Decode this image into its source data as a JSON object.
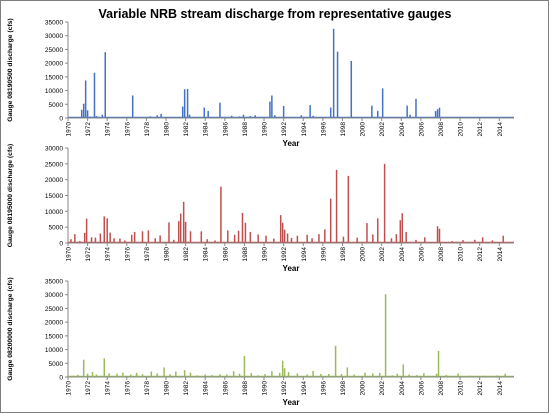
{
  "page": {
    "title": "Variable NRB stream discharge from representative gauges"
  },
  "chart_data": [
    {
      "type": "bar",
      "title": "Variable NRB stream discharge from representative gauges",
      "xlabel": "Year",
      "ylabel": "Gauge 08190500 discharge (cfs)",
      "ylim": [
        0,
        35000
      ],
      "yticks": [
        "0",
        "5000",
        "10000",
        "15000",
        "20000",
        "25000",
        "30000",
        "35000"
      ],
      "xlim": [
        1970,
        2015.5
      ],
      "xticks": [
        "1970",
        "1972",
        "1974",
        "1976",
        "1978",
        "1980",
        "1982",
        "1984",
        "1986",
        "1988",
        "1990",
        "1992",
        "1994",
        "1996",
        "1998",
        "2000",
        "2002",
        "2004",
        "2006",
        "2008",
        "2010",
        "2012",
        "2014"
      ],
      "color": "#4472c4",
      "grid": false,
      "points": [
        [
          1971.4,
          3000
        ],
        [
          1971.6,
          5200
        ],
        [
          1971.8,
          13700
        ],
        [
          1972.0,
          2800
        ],
        [
          1972.3,
          500
        ],
        [
          1972.7,
          16500
        ],
        [
          1972.9,
          700
        ],
        [
          1973.5,
          1200
        ],
        [
          1973.8,
          24000
        ],
        [
          1976.6,
          8200
        ],
        [
          1978.4,
          600
        ],
        [
          1979.1,
          1000
        ],
        [
          1979.5,
          1500
        ],
        [
          1981.7,
          4200
        ],
        [
          1981.9,
          10500
        ],
        [
          1982.2,
          10600
        ],
        [
          1982.4,
          1200
        ],
        [
          1983.9,
          3800
        ],
        [
          1984.3,
          2600
        ],
        [
          1985.5,
          5600
        ],
        [
          1986.7,
          800
        ],
        [
          1987.5,
          600
        ],
        [
          1987.9,
          1200
        ],
        [
          1988.6,
          700
        ],
        [
          1989.1,
          1000
        ],
        [
          1990.6,
          6000
        ],
        [
          1990.8,
          8200
        ],
        [
          1991.1,
          1000
        ],
        [
          1992.0,
          4400
        ],
        [
          1993.8,
          1000
        ],
        [
          1994.7,
          4700
        ],
        [
          1995.0,
          800
        ],
        [
          1996.8,
          3800
        ],
        [
          1997.1,
          32500
        ],
        [
          1997.5,
          24200
        ],
        [
          1998.9,
          20800
        ],
        [
          2001.0,
          4500
        ],
        [
          2001.6,
          2600
        ],
        [
          2002.1,
          10800
        ],
        [
          2004.6,
          4500
        ],
        [
          2004.9,
          1200
        ],
        [
          2005.5,
          7000
        ],
        [
          2007.5,
          2500
        ],
        [
          2007.7,
          3200
        ],
        [
          2007.9,
          3800
        ],
        [
          2009.5,
          400
        ],
        [
          2011.0,
          300
        ],
        [
          2013.0,
          200
        ]
      ]
    },
    {
      "type": "bar",
      "xlabel": "Year",
      "ylabel": "Gauge 08195000 discharge (cfs)",
      "ylim": [
        0,
        30000
      ],
      "yticks": [
        "0",
        "5000",
        "10000",
        "15000",
        "20000",
        "25000",
        "30000"
      ],
      "xlim": [
        1970,
        2015.5
      ],
      "xticks": [
        "1970",
        "1972",
        "1974",
        "1976",
        "1978",
        "1980",
        "1982",
        "1984",
        "1986",
        "1988",
        "1990",
        "1992",
        "1994",
        "1996",
        "1998",
        "2000",
        "2002",
        "2004",
        "2006",
        "2008",
        "2010",
        "2012",
        "2014"
      ],
      "color": "#c0504d",
      "grid": false,
      "points": [
        [
          1970.3,
          1200
        ],
        [
          1970.7,
          2800
        ],
        [
          1971.2,
          600
        ],
        [
          1971.7,
          3200
        ],
        [
          1971.9,
          7700
        ],
        [
          1972.4,
          1800
        ],
        [
          1972.8,
          1700
        ],
        [
          1973.3,
          3000
        ],
        [
          1973.7,
          8400
        ],
        [
          1974.0,
          7800
        ],
        [
          1974.3,
          3300
        ],
        [
          1974.7,
          1500
        ],
        [
          1975.3,
          1400
        ],
        [
          1975.8,
          800
        ],
        [
          1976.5,
          2600
        ],
        [
          1976.8,
          3500
        ],
        [
          1977.6,
          3700
        ],
        [
          1978.2,
          4000
        ],
        [
          1978.9,
          1500
        ],
        [
          1979.4,
          2400
        ],
        [
          1980.3,
          6500
        ],
        [
          1980.8,
          1000
        ],
        [
          1981.3,
          6900
        ],
        [
          1981.5,
          9300
        ],
        [
          1981.8,
          13000
        ],
        [
          1982.0,
          6700
        ],
        [
          1982.5,
          3700
        ],
        [
          1983.6,
          3700
        ],
        [
          1984.2,
          1200
        ],
        [
          1985.0,
          800
        ],
        [
          1985.6,
          17800
        ],
        [
          1986.3,
          4000
        ],
        [
          1987.0,
          2600
        ],
        [
          1987.4,
          3900
        ],
        [
          1987.8,
          9500
        ],
        [
          1988.1,
          6400
        ],
        [
          1988.6,
          3500
        ],
        [
          1989.4,
          2700
        ],
        [
          1990.2,
          2300
        ],
        [
          1991.0,
          1400
        ],
        [
          1991.7,
          8800
        ],
        [
          1991.9,
          6400
        ],
        [
          1992.1,
          4200
        ],
        [
          1992.4,
          3000
        ],
        [
          1992.8,
          1600
        ],
        [
          1993.4,
          2300
        ],
        [
          1994.4,
          2600
        ],
        [
          1994.9,
          1500
        ],
        [
          1995.6,
          2800
        ],
        [
          1996.2,
          4300
        ],
        [
          1996.8,
          14000
        ],
        [
          1997.4,
          23100
        ],
        [
          1998.1,
          2000
        ],
        [
          1998.6,
          21200
        ],
        [
          1999.5,
          1700
        ],
        [
          2000.5,
          6300
        ],
        [
          2001.1,
          2700
        ],
        [
          2001.6,
          7800
        ],
        [
          2002.3,
          25000
        ],
        [
          2003.0,
          1500
        ],
        [
          2003.5,
          2800
        ],
        [
          2003.9,
          7200
        ],
        [
          2004.1,
          9400
        ],
        [
          2004.5,
          3500
        ],
        [
          2005.5,
          1000
        ],
        [
          2006.4,
          1800
        ],
        [
          2007.7,
          5300
        ],
        [
          2007.9,
          4500
        ],
        [
          2009.2,
          600
        ],
        [
          2010.3,
          900
        ],
        [
          2011.5,
          1000
        ],
        [
          2012.3,
          1800
        ],
        [
          2013.3,
          800
        ],
        [
          2014.4,
          2300
        ]
      ]
    },
    {
      "type": "bar",
      "xlabel": "Year",
      "ylabel": "Gauge 08200000 discharge (cfs)",
      "ylim": [
        0,
        35000
      ],
      "yticks": [
        "0",
        "5000",
        "10000",
        "15000",
        "20000",
        "25000",
        "30000",
        "35000"
      ],
      "xlim": [
        1970,
        2015.5
      ],
      "xticks": [
        "1970",
        "1972",
        "1974",
        "1976",
        "1978",
        "1980",
        "1982",
        "1984",
        "1986",
        "1988",
        "1990",
        "1992",
        "1994",
        "1996",
        "1998",
        "2000",
        "2002",
        "2004",
        "2006",
        "2008",
        "2010",
        "2012",
        "2014"
      ],
      "color": "#9bbb59",
      "grid": false,
      "points": [
        [
          1970.5,
          500
        ],
        [
          1971.0,
          800
        ],
        [
          1971.6,
          6300
        ],
        [
          1972.0,
          1200
        ],
        [
          1972.5,
          1800
        ],
        [
          1972.9,
          900
        ],
        [
          1973.7,
          6800
        ],
        [
          1974.2,
          1300
        ],
        [
          1975.0,
          1200
        ],
        [
          1975.6,
          1600
        ],
        [
          1976.4,
          900
        ],
        [
          1977.0,
          1500
        ],
        [
          1977.6,
          1000
        ],
        [
          1978.5,
          2000
        ],
        [
          1979.1,
          1300
        ],
        [
          1979.8,
          3500
        ],
        [
          1980.4,
          1000
        ],
        [
          1981.0,
          2000
        ],
        [
          1981.9,
          2500
        ],
        [
          1982.5,
          1600
        ],
        [
          1983.2,
          600
        ],
        [
          1984.0,
          900
        ],
        [
          1984.7,
          700
        ],
        [
          1985.5,
          1000
        ],
        [
          1986.2,
          900
        ],
        [
          1986.9,
          2100
        ],
        [
          1987.5,
          1200
        ],
        [
          1988.0,
          7700
        ],
        [
          1988.7,
          1400
        ],
        [
          1989.4,
          600
        ],
        [
          1990.1,
          1100
        ],
        [
          1990.8,
          2100
        ],
        [
          1991.6,
          1500
        ],
        [
          1991.9,
          5900
        ],
        [
          1992.1,
          3200
        ],
        [
          1992.5,
          1800
        ],
        [
          1993.4,
          1300
        ],
        [
          1994.4,
          900
        ],
        [
          1995.0,
          2200
        ],
        [
          1995.8,
          1100
        ],
        [
          1996.6,
          1100
        ],
        [
          1997.3,
          11400
        ],
        [
          1997.9,
          1100
        ],
        [
          1998.5,
          3500
        ],
        [
          1999.2,
          900
        ],
        [
          2000.3,
          1600
        ],
        [
          2001.1,
          1300
        ],
        [
          2001.8,
          1500
        ],
        [
          2002.4,
          30200
        ],
        [
          2003.1,
          600
        ],
        [
          2003.6,
          1200
        ],
        [
          2004.2,
          4600
        ],
        [
          2004.8,
          900
        ],
        [
          2005.6,
          700
        ],
        [
          2006.3,
          1400
        ],
        [
          2007.6,
          1200
        ],
        [
          2007.8,
          9500
        ],
        [
          2008.6,
          700
        ],
        [
          2009.8,
          1300
        ],
        [
          2011.0,
          500
        ],
        [
          2012.4,
          500
        ],
        [
          2013.8,
          600
        ],
        [
          2014.6,
          1200
        ]
      ]
    }
  ]
}
